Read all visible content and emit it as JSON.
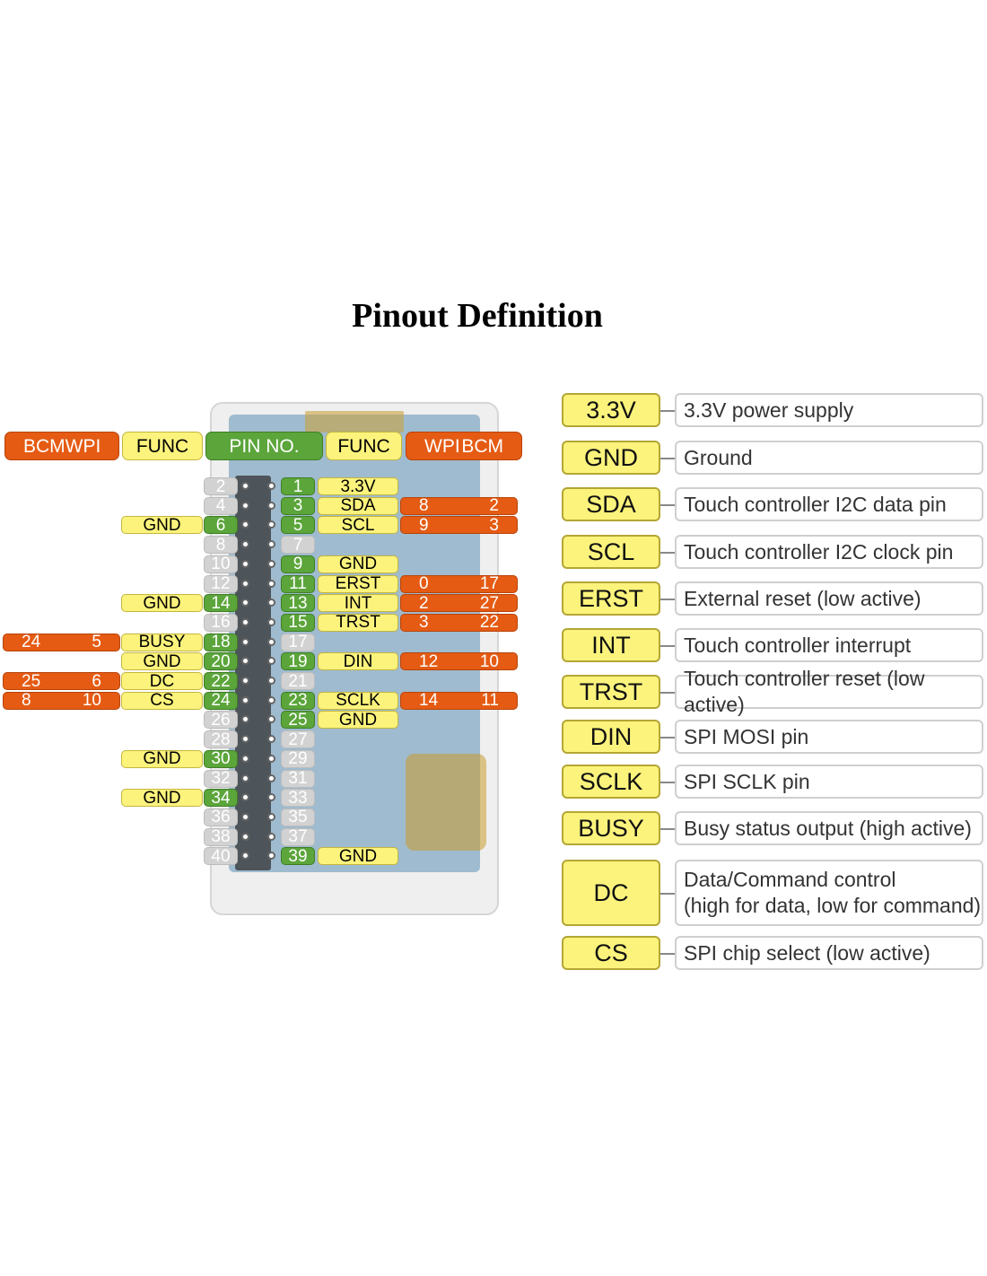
{
  "title": "Pinout Definition",
  "headers": {
    "left_bcm": "BCM",
    "left_wpi": "WPI",
    "left_func": "FUNC",
    "pin_no": "PIN NO.",
    "right_func": "FUNC",
    "right_wpi": "WPI",
    "right_bcm": "BCM"
  },
  "even_pins": [
    {
      "pin": "2",
      "active": false
    },
    {
      "pin": "4",
      "active": false
    },
    {
      "pin": "6",
      "active": true,
      "func": "GND"
    },
    {
      "pin": "8",
      "active": false
    },
    {
      "pin": "10",
      "active": false
    },
    {
      "pin": "12",
      "active": false
    },
    {
      "pin": "14",
      "active": true,
      "func": "GND"
    },
    {
      "pin": "16",
      "active": false
    },
    {
      "pin": "18",
      "active": true,
      "func": "BUSY",
      "bcm": "24",
      "wpi": "5"
    },
    {
      "pin": "20",
      "active": true,
      "func": "GND"
    },
    {
      "pin": "22",
      "active": true,
      "func": "DC",
      "bcm": "25",
      "wpi": "6"
    },
    {
      "pin": "24",
      "active": true,
      "func": "CS",
      "bcm": "8",
      "wpi": "10"
    },
    {
      "pin": "26",
      "active": false
    },
    {
      "pin": "28",
      "active": false
    },
    {
      "pin": "30",
      "active": true,
      "func": "GND"
    },
    {
      "pin": "32",
      "active": false
    },
    {
      "pin": "34",
      "active": true,
      "func": "GND"
    },
    {
      "pin": "36",
      "active": false
    },
    {
      "pin": "38",
      "active": false
    },
    {
      "pin": "40",
      "active": false
    }
  ],
  "odd_pins": [
    {
      "pin": "1",
      "active": true,
      "func": "3.3V"
    },
    {
      "pin": "3",
      "active": true,
      "func": "SDA",
      "wpi": "8",
      "bcm": "2"
    },
    {
      "pin": "5",
      "active": true,
      "func": "SCL",
      "wpi": "9",
      "bcm": "3"
    },
    {
      "pin": "7",
      "active": false
    },
    {
      "pin": "9",
      "active": true,
      "func": "GND"
    },
    {
      "pin": "11",
      "active": true,
      "func": "ERST",
      "wpi": "0",
      "bcm": "17"
    },
    {
      "pin": "13",
      "active": true,
      "func": "INT",
      "wpi": "2",
      "bcm": "27"
    },
    {
      "pin": "15",
      "active": true,
      "func": "TRST",
      "wpi": "3",
      "bcm": "22"
    },
    {
      "pin": "17",
      "active": false
    },
    {
      "pin": "19",
      "active": true,
      "func": "DIN",
      "wpi": "12",
      "bcm": "10"
    },
    {
      "pin": "21",
      "active": false
    },
    {
      "pin": "23",
      "active": true,
      "func": "SCLK",
      "wpi": "14",
      "bcm": "11"
    },
    {
      "pin": "25",
      "active": true,
      "func": "GND"
    },
    {
      "pin": "27",
      "active": false
    },
    {
      "pin": "29",
      "active": false
    },
    {
      "pin": "31",
      "active": false
    },
    {
      "pin": "33",
      "active": false
    },
    {
      "pin": "35",
      "active": false
    },
    {
      "pin": "37",
      "active": false
    },
    {
      "pin": "39",
      "active": true,
      "func": "GND"
    }
  ],
  "legend": [
    {
      "label": "3.3V",
      "desc": "3.3V power supply"
    },
    {
      "label": "GND",
      "desc": "Ground"
    },
    {
      "label": "SDA",
      "desc": "Touch controller I2C data pin"
    },
    {
      "label": "SCL",
      "desc": "Touch controller I2C clock pin"
    },
    {
      "label": "ERST",
      "desc": "External reset (low active)"
    },
    {
      "label": "INT",
      "desc": "Touch controller interrupt"
    },
    {
      "label": "TRST",
      "desc": "Touch controller reset (low active)"
    },
    {
      "label": "DIN",
      "desc": "SPI MOSI pin"
    },
    {
      "label": "SCLK",
      "desc": "SPI SCLK pin"
    },
    {
      "label": "BUSY",
      "desc": "Busy status output (high active)"
    },
    {
      "label": "DC",
      "desc": "Data/Command control\n(high for data, low for command)"
    },
    {
      "label": "CS",
      "desc": "SPI chip select (low active)"
    }
  ],
  "colors": {
    "orange": "#e55b13",
    "yellow": "#fbf37c",
    "green": "#5ba53b",
    "grey": "#d2d2d2"
  }
}
